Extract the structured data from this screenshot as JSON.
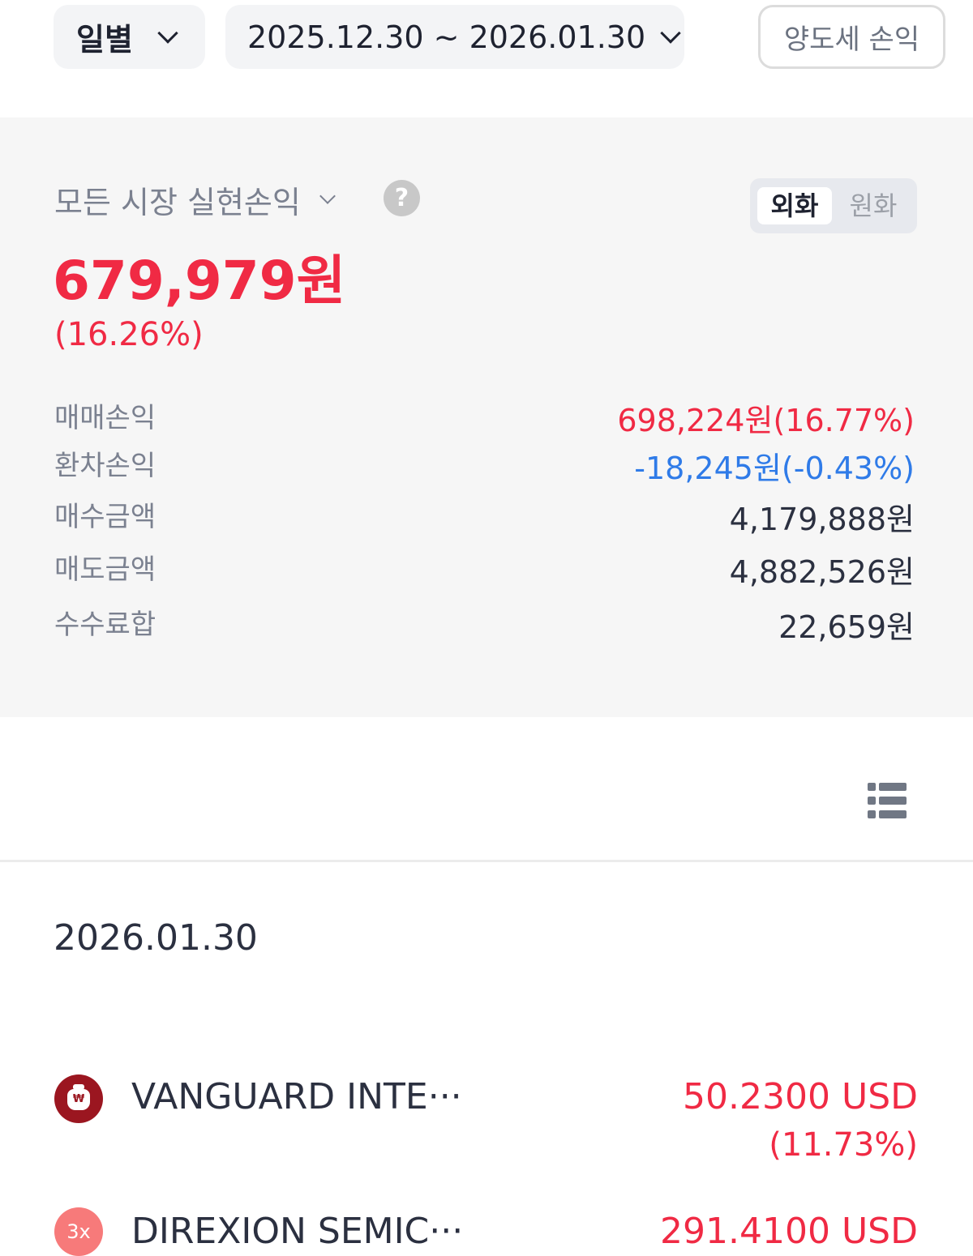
{
  "header": {
    "period_label": "일별",
    "date_range": "2025.12.30 ~ 2026.01.30",
    "tax_button": "양도세 손익"
  },
  "summary": {
    "market_title": "모든 시장 실현손익",
    "help_icon": "?",
    "currency_toggle": [
      {
        "label": "외화",
        "selected": true
      },
      {
        "label": "원화",
        "selected": false
      }
    ],
    "total": "679,979원",
    "total_pct": "(16.26%)",
    "rows": [
      {
        "label": "매매손익",
        "value": "698,224원(16.77%)",
        "color": "#f02a44"
      },
      {
        "label": "환차손익",
        "value": "-18,245원(-0.43%)",
        "color": "#2f7be8"
      },
      {
        "label": "매수금액",
        "value": "4,179,888원"
      },
      {
        "label": "매도금액",
        "value": "4,882,526원"
      },
      {
        "label": "수수료합",
        "value": "22,659원"
      }
    ]
  },
  "list": {
    "date": "2026.01.30",
    "items": [
      {
        "name": "VANGUARD INTE···",
        "amount": "50.2300 USD",
        "pct": "(11.73%)",
        "icon": "money-bag-icon",
        "icon_color": "#9b1620"
      },
      {
        "name": "DIREXION SEMIC···",
        "amount": "291.4100 USD",
        "icon": "3x",
        "icon_color": "#f77a7a"
      }
    ]
  }
}
